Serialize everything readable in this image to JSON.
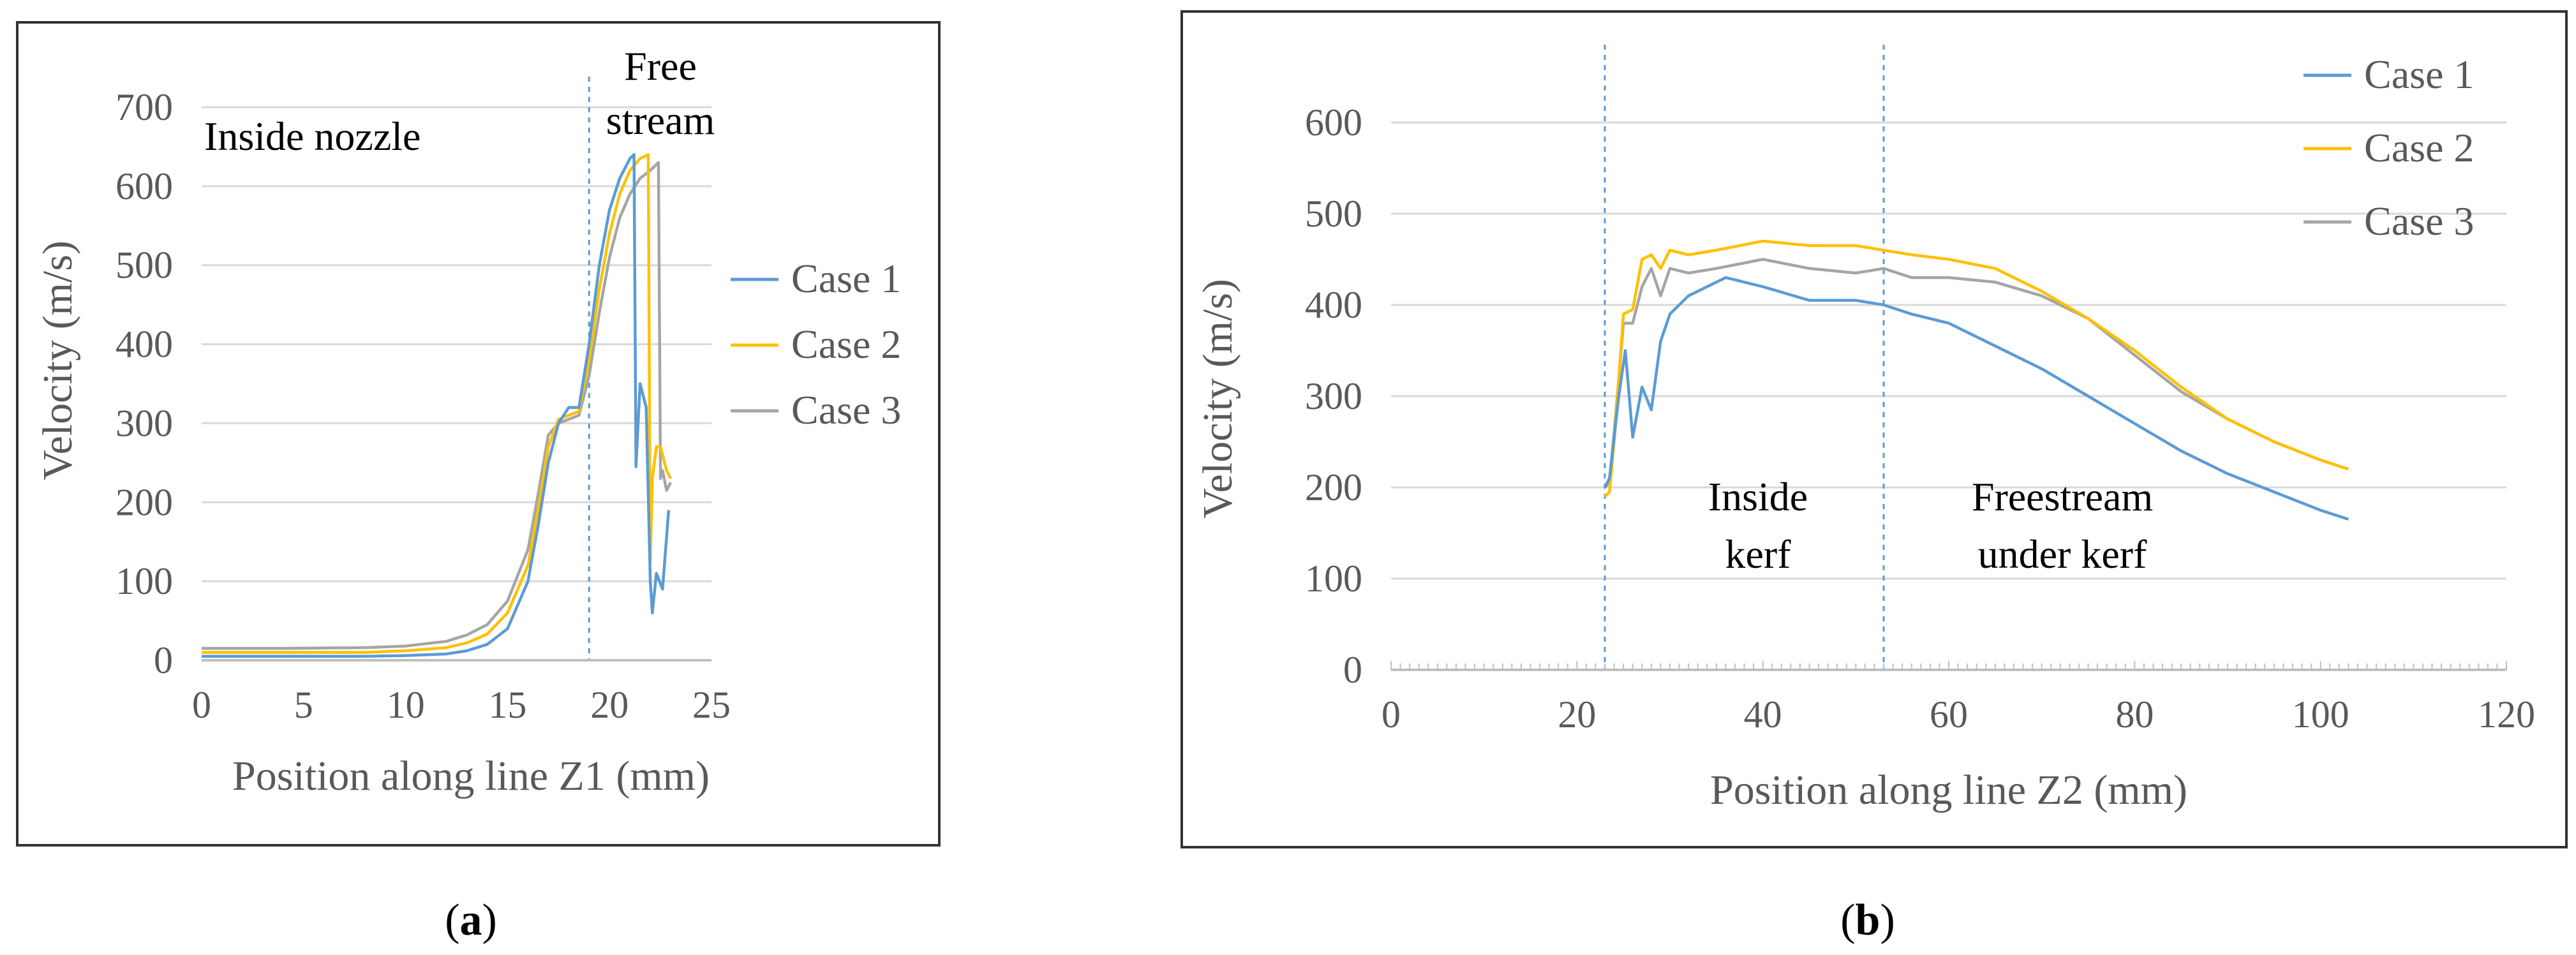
{
  "chart_data": [
    {
      "panel_label": "a",
      "type": "line",
      "title": "",
      "xlabel": "Position along line Z1 (mm)",
      "ylabel": "Velocity (m/s)",
      "xlim": [
        0,
        25
      ],
      "ylim": [
        0,
        700
      ],
      "xticks": [
        0,
        5,
        10,
        15,
        20,
        25
      ],
      "yticks": [
        0,
        100,
        200,
        300,
        400,
        500,
        600,
        700
      ],
      "grid": "horizontal",
      "legend_position": "right",
      "annotations": [
        "Inside nozzle",
        "Free",
        "stream"
      ],
      "divider_x": 19,
      "series": [
        {
          "name": "Case 1",
          "color": "#5b9bd5",
          "x": [
            0,
            4,
            8,
            10,
            12,
            13,
            14,
            15,
            16,
            16.5,
            17,
            17.5,
            18,
            18.5,
            19,
            19.5,
            20,
            20.5,
            21,
            21.2,
            21.3,
            21.5,
            21.8,
            22,
            22.1,
            22.3,
            22.6,
            22.9
          ],
          "y": [
            5,
            5,
            5,
            6,
            8,
            12,
            20,
            40,
            100,
            170,
            250,
            300,
            320,
            320,
            400,
            500,
            570,
            610,
            635,
            640,
            245,
            350,
            320,
            100,
            60,
            110,
            90,
            190
          ]
        },
        {
          "name": "Case 2",
          "color": "#ffc000",
          "x": [
            0,
            4,
            8,
            10,
            12,
            13,
            14,
            15,
            16,
            16.5,
            17,
            17.5,
            18,
            18.5,
            19,
            19.5,
            20,
            20.5,
            21,
            21.5,
            21.9,
            22,
            22.1,
            22.3,
            22.5,
            22.8,
            23
          ],
          "y": [
            10,
            10,
            10,
            12,
            16,
            22,
            33,
            60,
            120,
            190,
            270,
            305,
            310,
            315,
            380,
            470,
            540,
            590,
            620,
            635,
            640,
            125,
            230,
            270,
            270,
            240,
            230
          ]
        },
        {
          "name": "Case 3",
          "color": "#a5a5a5",
          "x": [
            0,
            4,
            8,
            10,
            12,
            13,
            14,
            15,
            16,
            16.5,
            17,
            17.5,
            18,
            18.5,
            19,
            19.5,
            20,
            20.5,
            21,
            21.5,
            22,
            22.4,
            22.5,
            22.6,
            22.8,
            23
          ],
          "y": [
            15,
            15,
            16,
            18,
            24,
            32,
            45,
            75,
            140,
            210,
            285,
            300,
            305,
            310,
            360,
            440,
            510,
            560,
            590,
            610,
            620,
            630,
            230,
            240,
            215,
            225
          ]
        }
      ]
    },
    {
      "panel_label": "b",
      "type": "line",
      "title": "",
      "xlabel": "Position along line Z2 (mm)",
      "ylabel": "Velocity (m/s)",
      "xlim": [
        0,
        120
      ],
      "ylim": [
        0,
        600
      ],
      "xticks": [
        0,
        20,
        40,
        60,
        80,
        100,
        120
      ],
      "yticks": [
        0,
        100,
        200,
        300,
        400,
        500,
        600
      ],
      "grid": "horizontal",
      "legend_position": "top-right",
      "annotations": [
        "Inside",
        "kerf",
        "Freestream",
        "under kerf"
      ],
      "divider_x": [
        23,
        53
      ],
      "series": [
        {
          "name": "Case 1",
          "color": "#5b9bd5",
          "x": [
            23,
            23.5,
            24.5,
            25.2,
            26,
            27,
            28,
            29,
            30,
            32,
            34,
            36,
            40,
            45,
            50,
            53,
            56,
            60,
            65,
            70,
            75,
            80,
            85,
            90,
            95,
            100,
            103
          ],
          "y": [
            200,
            210,
            300,
            350,
            255,
            310,
            285,
            360,
            390,
            410,
            420,
            430,
            420,
            405,
            405,
            400,
            390,
            380,
            355,
            330,
            300,
            270,
            240,
            215,
            195,
            175,
            165
          ]
        },
        {
          "name": "Case 2",
          "color": "#ffc000",
          "x": [
            23,
            23.5,
            24,
            25,
            26,
            27,
            28,
            29,
            30,
            32,
            35,
            40,
            45,
            50,
            53,
            56,
            60,
            65,
            70,
            75,
            80,
            85,
            90,
            95,
            100,
            103
          ],
          "y": [
            190,
            195,
            250,
            390,
            395,
            450,
            455,
            440,
            460,
            455,
            460,
            470,
            465,
            465,
            460,
            455,
            450,
            440,
            415,
            385,
            350,
            310,
            275,
            250,
            230,
            220
          ]
        },
        {
          "name": "Case 3",
          "color": "#a5a5a5",
          "x": [
            23,
            23.5,
            24,
            25,
            26,
            27,
            28,
            29,
            30,
            32,
            35,
            40,
            45,
            50,
            53,
            56,
            60,
            65,
            70,
            75,
            80,
            85,
            90,
            95,
            100,
            103
          ],
          "y": [
            200,
            205,
            260,
            380,
            380,
            420,
            440,
            410,
            440,
            435,
            440,
            450,
            440,
            435,
            440,
            430,
            430,
            425,
            410,
            385,
            345,
            305,
            275,
            250,
            230,
            220
          ]
        }
      ]
    }
  ]
}
